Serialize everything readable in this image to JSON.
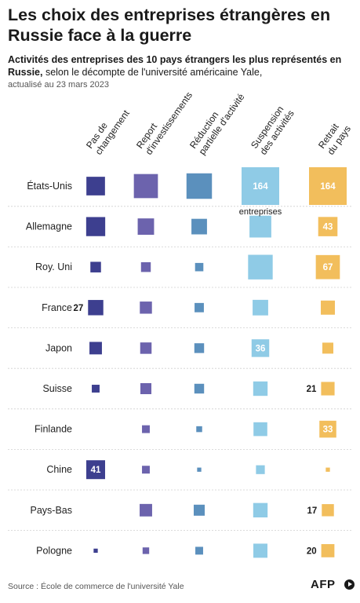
{
  "header": {
    "title": "Les choix des entreprises étrangères en Russie face à la guerre",
    "subtitle_bold": "Activités des entreprises des 10 pays étrangers les plus représentés en Russie,",
    "subtitle_rest": " selon le décompte de l'université américaine Yale,",
    "updated": "actualisé au 23 mars 2023"
  },
  "chart_data": {
    "type": "table",
    "encoding": "square area proportional to number of companies",
    "columns": [
      {
        "label": [
          "Pas de",
          "changement"
        ],
        "color": "#3d3f8f"
      },
      {
        "label": [
          "Report",
          "d'investissements"
        ],
        "color": "#6c63ad"
      },
      {
        "label": [
          "Réduction",
          "partielle d'activité"
        ],
        "color": "#5b90bd"
      },
      {
        "label": [
          "Suspension",
          "des activités"
        ],
        "color": "#8fcbe6"
      },
      {
        "label": [
          "Retrait",
          "du pays"
        ],
        "color": "#f2be5c"
      }
    ],
    "rows": [
      {
        "country": "États-Unis",
        "values": [
          40,
          67,
          75,
          164,
          164
        ]
      },
      {
        "country": "Allemagne",
        "values": [
          42,
          31,
          28,
          55,
          43
        ]
      },
      {
        "country": "Roy. Uni",
        "values": [
          13,
          11,
          8,
          70,
          67
        ]
      },
      {
        "country": "France",
        "values": [
          27,
          17,
          10,
          28,
          23
        ]
      },
      {
        "country": "Japon",
        "values": [
          18,
          15,
          11,
          36,
          14
        ]
      },
      {
        "country": "Suisse",
        "values": [
          7,
          14,
          11,
          24,
          21
        ]
      },
      {
        "country": "Finlande",
        "values": [
          0,
          7,
          4,
          22,
          33
        ]
      },
      {
        "country": "Chine",
        "values": [
          41,
          7,
          2,
          9,
          2
        ]
      },
      {
        "country": "Pays-Bas",
        "values": [
          0,
          18,
          14,
          24,
          17
        ]
      },
      {
        "country": "Pologne",
        "values": [
          2,
          5,
          7,
          23,
          20
        ]
      }
    ],
    "annotations": [
      {
        "row": 0,
        "col": 3,
        "label": "164",
        "subnote": "entreprises"
      },
      {
        "row": 0,
        "col": 4,
        "label": "164"
      },
      {
        "row": 1,
        "col": 4,
        "label": "43"
      },
      {
        "row": 2,
        "col": 4,
        "label": "67"
      },
      {
        "row": 3,
        "col": 0,
        "label": "27"
      },
      {
        "row": 4,
        "col": 3,
        "label": "36"
      },
      {
        "row": 5,
        "col": 4,
        "label": "21"
      },
      {
        "row": 6,
        "col": 4,
        "label": "33"
      },
      {
        "row": 7,
        "col": 0,
        "label": "41"
      },
      {
        "row": 8,
        "col": 4,
        "label": "17"
      },
      {
        "row": 9,
        "col": 4,
        "label": "20"
      }
    ]
  },
  "footer": {
    "source": "Source : École de commerce de l'université Yale",
    "logo": "AFP"
  }
}
